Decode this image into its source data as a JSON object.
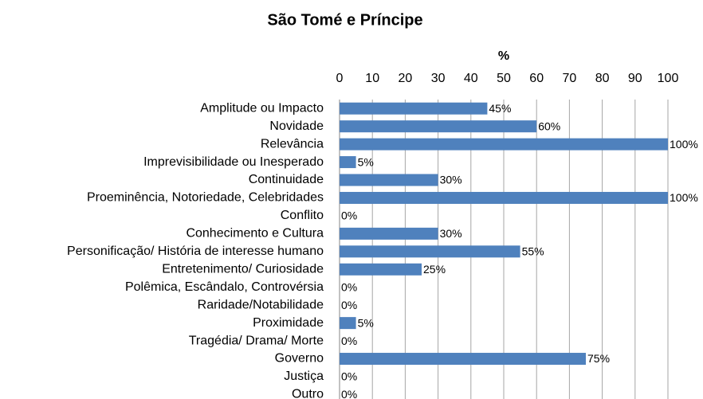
{
  "chart_data": {
    "type": "bar",
    "orientation": "horizontal",
    "title": "São Tomé e Príncipe",
    "x_label": "%",
    "categories": [
      "Amplitude ou Impacto",
      "Novidade",
      "Relevância",
      "Imprevisibilidade ou Inesperado",
      "Continuidade",
      "Proeminência, Notoriedade, Celebridades",
      "Conflito",
      "Conhecimento e Cultura",
      "Personificação/ História de interesse humano",
      "Entretenimento/ Curiosidade",
      "Polêmica, Escândalo, Controvérsia",
      "Raridade/Notabilidade",
      "Proximidade",
      "Tragédia/ Drama/ Morte",
      "Governo",
      "Justiça",
      "Outro"
    ],
    "values": [
      45,
      60,
      100,
      5,
      30,
      100,
      0,
      30,
      55,
      25,
      0,
      0,
      5,
      0,
      75,
      0,
      0
    ],
    "value_labels": [
      "45%",
      "60%",
      "100%",
      "5%",
      "30%",
      "100%",
      "0%",
      "30%",
      "55%",
      "25%",
      "0%",
      "0%",
      "5%",
      "0%",
      "75%",
      "0%",
      "0%"
    ],
    "color": "#4f81bd",
    "xlim": [
      0,
      100
    ],
    "xticks": [
      0,
      10,
      20,
      30,
      40,
      50,
      60,
      70,
      80,
      90,
      100
    ],
    "grid": true
  }
}
